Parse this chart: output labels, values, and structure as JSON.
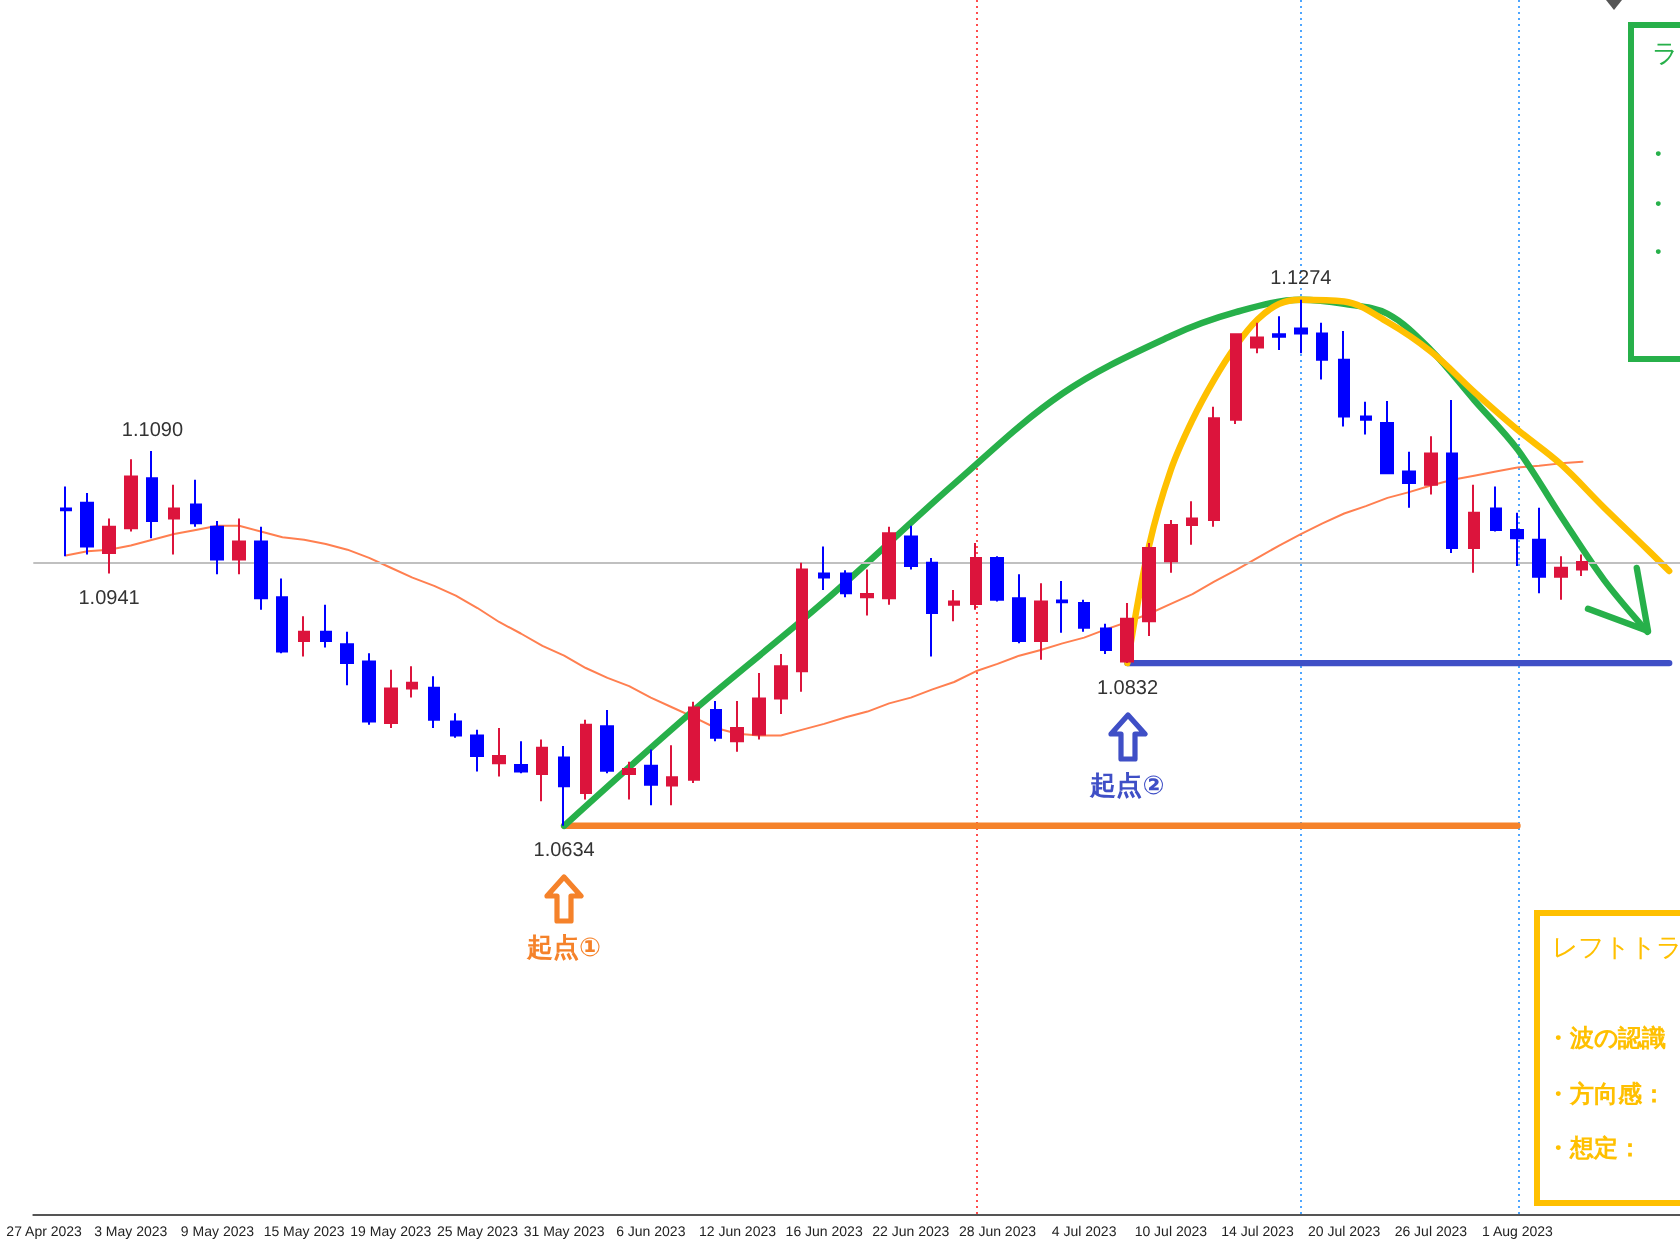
{
  "chart_data": {
    "type": "candlestick",
    "tick_labels": "x",
    "categories": [
      "27 Apr 2023",
      null,
      null,
      null,
      "3 May 2023",
      null,
      null,
      null,
      "9 May 2023",
      null,
      null,
      null,
      "15 May 2023",
      null,
      null,
      null,
      "19 May 2023",
      null,
      null,
      null,
      "25 May 2023",
      null,
      null,
      null,
      "31 May 2023",
      null,
      null,
      null,
      "6 Jun 2023",
      null,
      null,
      null,
      "12 Jun 2023",
      null,
      null,
      null,
      "16 Jun 2023",
      null,
      null,
      null,
      "22 Jun 2023",
      null,
      null,
      null,
      "28 Jun 2023",
      null,
      null,
      null,
      "4 Jul 2023",
      null,
      null,
      null,
      "10 Jul 2023",
      null,
      null,
      null,
      "14 Jul 2023",
      null,
      null,
      null,
      "20 Jul 2023",
      null,
      null,
      null,
      "26 Jul 2023",
      null,
      null,
      null,
      "1 Aug 2023",
      null,
      null,
      null,
      null,
      null,
      null,
      null
    ],
    "ohlc": [
      null,
      [
        1.102,
        1.1047,
        1.0962,
        1.1018
      ],
      [
        1.1027,
        1.1039,
        1.0964,
        1.0974
      ],
      [
        1.0966,
        1.1008,
        1.0941,
        1.0998
      ],
      [
        1.0996,
        1.108,
        1.0992,
        1.1059
      ],
      [
        1.1057,
        1.109,
        1.0984,
        1.1005
      ],
      [
        1.1008,
        1.1049,
        1.0964,
        1.102
      ],
      [
        1.1025,
        1.1055,
        1.0998,
        1.1002
      ],
      [
        1.0998,
        1.1005,
        1.094,
        1.0958
      ],
      [
        1.0958,
        1.1008,
        1.094,
        1.098
      ],
      [
        1.098,
        1.0998,
        1.0897,
        1.0911
      ],
      [
        1.0912,
        1.0935,
        1.0844,
        1.0846
      ],
      [
        1.0859,
        1.0889,
        1.084,
        1.087
      ],
      [
        1.087,
        1.0903,
        1.0851,
        1.0859
      ],
      [
        1.0855,
        1.087,
        1.0805,
        1.0832
      ],
      [
        1.0834,
        1.0844,
        1.0757,
        1.0761
      ],
      [
        1.0759,
        1.0824,
        1.0753,
        1.0801
      ],
      [
        1.0801,
        1.0828,
        1.079,
        1.0808
      ],
      [
        1.0802,
        1.0816,
        1.0753,
        1.0763
      ],
      [
        1.0761,
        1.0771,
        1.0741,
        1.0744
      ],
      [
        1.0744,
        1.0751,
        1.07,
        1.0719
      ],
      [
        1.071,
        1.0753,
        1.0694,
        1.0719
      ],
      [
        1.0708,
        1.0737,
        1.0698,
        1.07
      ],
      [
        1.0697,
        1.0739,
        1.0664,
        1.0729
      ],
      [
        1.0717,
        1.0731,
        1.0634,
        1.0682
      ],
      [
        1.0674,
        1.0763,
        1.0666,
        1.0757
      ],
      [
        1.0755,
        1.0775,
        1.0698,
        1.0701
      ],
      [
        1.0697,
        1.0712,
        1.0666,
        1.0703
      ],
      [
        1.0707,
        1.0727,
        1.0659,
        1.0684
      ],
      [
        1.0683,
        1.0732,
        1.0659,
        1.0693
      ],
      [
        1.069,
        1.0785,
        1.0686,
        1.0778
      ],
      [
        1.0775,
        1.0786,
        1.0737,
        1.0741
      ],
      [
        1.0737,
        1.0786,
        1.0724,
        1.0753
      ],
      [
        1.0745,
        1.082,
        1.0739,
        1.0789
      ],
      [
        1.0789,
        1.0843,
        1.077,
        1.0828
      ],
      [
        1.0822,
        1.0954,
        1.0797,
        1.0946
      ],
      [
        1.0941,
        1.0974,
        1.0921,
        1.0936
      ],
      [
        1.0941,
        1.0945,
        1.0912,
        1.0917
      ],
      [
        1.0912,
        1.0946,
        1.089,
        1.0916
      ],
      [
        1.0911,
        1.0998,
        1.0903,
        1.099
      ],
      [
        1.0986,
        1.0999,
        1.0946,
        1.095
      ],
      [
        1.0954,
        1.096,
        1.084,
        1.0893
      ],
      [
        1.0903,
        1.0921,
        1.0883,
        1.0907
      ],
      [
        1.0904,
        1.0978,
        1.0897,
        1.096
      ],
      [
        1.096,
        1.0962,
        1.0907,
        1.0909
      ],
      [
        1.0911,
        1.094,
        1.0856,
        1.0859
      ],
      [
        1.0859,
        1.0929,
        1.0836,
        1.0907
      ],
      [
        1.0908,
        1.0932,
        1.0869,
        1.0906
      ],
      [
        1.0905,
        1.0909,
        1.087,
        1.0875
      ],
      [
        1.0874,
        1.088,
        1.0843,
        1.0848
      ],
      [
        1.0834,
        1.0905,
        1.0832,
        1.0886
      ],
      [
        1.0883,
        1.0978,
        1.0865,
        1.0972
      ],
      [
        1.0956,
        1.1006,
        1.0942,
        1.1
      ],
      [
        1.1,
        1.1029,
        1.0976,
        1.1008
      ],
      [
        1.1006,
        1.1144,
        1.0998,
        1.113
      ],
      [
        1.1128,
        1.1233,
        1.1123,
        1.1232
      ],
      [
        1.1216,
        1.1246,
        1.1209,
        1.1228
      ],
      [
        1.1232,
        1.1254,
        1.1213,
        1.1229
      ],
      [
        1.1239,
        1.1274,
        1.1209,
        1.1233
      ],
      [
        1.1233,
        1.1246,
        1.1177,
        1.1201
      ],
      [
        1.1201,
        1.1236,
        1.112,
        1.1132
      ],
      [
        1.1132,
        1.115,
        1.111,
        1.1128
      ],
      [
        1.1124,
        1.1151,
        1.1062,
        1.1063
      ],
      [
        1.1065,
        1.1089,
        1.1021,
        1.1051
      ],
      [
        1.1049,
        1.1108,
        1.1037,
        1.1087
      ],
      [
        1.1087,
        1.1152,
        1.0966,
        1.0972
      ],
      [
        1.0972,
        1.1049,
        1.0942,
        1.1015
      ],
      [
        1.102,
        1.1047,
        1.0992,
        1.0994
      ],
      [
        1.0994,
        1.1015,
        1.095,
        1.0984
      ],
      [
        1.0982,
        1.1021,
        1.0917,
        1.0937
      ],
      [
        1.0937,
        1.0962,
        1.0909,
        1.0948
      ],
      [
        1.0946,
        1.0964,
        1.0938,
        1.0955
      ],
      null,
      null,
      null,
      null
    ],
    "series": [
      {
        "type": "line",
        "color": "#ff7f50",
        "values": [
          null,
          1.0963,
          1.0968,
          1.097,
          1.0975,
          1.0982,
          1.0989,
          1.0994,
          1.0999,
          1.0999,
          1.0992,
          1.0985,
          1.0982,
          1.0977,
          1.097,
          1.096,
          1.0948,
          1.0936,
          1.0926,
          1.0914,
          1.0899,
          1.0882,
          1.0868,
          1.0853,
          1.0841,
          1.0826,
          1.0814,
          1.0804,
          1.079,
          1.0778,
          1.0766,
          1.0753,
          1.0746,
          1.0744,
          1.0744,
          1.0751,
          1.0758,
          1.0766,
          1.0773,
          1.0783,
          1.079,
          1.08,
          1.0809,
          1.0822,
          1.0831,
          1.0841,
          1.0848,
          1.0856,
          1.0863,
          1.0873,
          1.0882,
          1.0892,
          1.0904,
          1.0916,
          1.0931,
          1.0945,
          1.096,
          1.0975,
          1.0989,
          1.1002,
          1.1014,
          1.1023,
          1.1033,
          1.104,
          1.1048,
          1.1055,
          1.106,
          1.1065,
          1.107,
          1.1072,
          1.1075,
          1.1077,
          null,
          null,
          null,
          null
        ]
      },
      {
        "type": "line",
        "color": "#f5822a",
        "values": [
          null,
          null,
          null,
          null,
          null,
          null,
          null,
          null,
          null,
          null,
          null,
          null,
          null,
          null,
          null,
          null,
          null,
          null,
          null,
          null,
          null,
          null,
          null,
          null,
          1.0634,
          null,
          null,
          null,
          null,
          null,
          null,
          null,
          null,
          null,
          null,
          null,
          null,
          null,
          null,
          null,
          null,
          null,
          null,
          null,
          null,
          null,
          null,
          null,
          null,
          null,
          null,
          null,
          null,
          null,
          null,
          null,
          null,
          null,
          null,
          null,
          null,
          null,
          null,
          null,
          null,
          null,
          null,
          null,
          1.0634,
          null,
          null,
          null,
          null,
          null,
          null,
          null
        ]
      },
      {
        "type": "line",
        "color": "#3f4fc6",
        "values": [
          null,
          null,
          null,
          null,
          null,
          null,
          null,
          null,
          null,
          null,
          null,
          null,
          null,
          null,
          null,
          null,
          null,
          null,
          null,
          null,
          null,
          null,
          null,
          null,
          null,
          null,
          null,
          null,
          null,
          null,
          null,
          null,
          null,
          null,
          null,
          null,
          null,
          null,
          null,
          null,
          null,
          null,
          null,
          null,
          null,
          null,
          null,
          null,
          null,
          null,
          1.0832,
          null,
          null,
          null,
          null,
          null,
          null,
          null,
          null,
          null,
          null,
          null,
          null,
          null,
          null,
          null,
          null,
          null,
          null,
          null,
          null,
          null,
          null,
          null,
          null,
          1.0832
        ]
      },
      {
        "type": "line",
        "color": "#27b04a",
        "values": [
          null,
          null,
          null,
          null,
          null,
          null,
          null,
          null,
          null,
          null,
          null,
          null,
          null,
          null,
          null,
          null,
          null,
          null,
          null,
          null,
          null,
          null,
          null,
          null,
          1.0634,
          null,
          null,
          null,
          null,
          null,
          1.0775,
          null,
          null,
          null,
          null,
          null,
          1.0907,
          null,
          null,
          null,
          null,
          null,
          1.105,
          null,
          null,
          null,
          null,
          1.116,
          null,
          null,
          null,
          null,
          1.123,
          null,
          null,
          1.1259,
          null,
          null,
          1.1274,
          null,
          1.1269,
          null,
          1.1257,
          null,
          1.1213,
          null,
          1.1152,
          null,
          1.1092,
          null,
          1.1011,
          null,
          1.0933,
          null,
          1.087,
          null
        ]
      },
      {
        "type": "line",
        "color": "#ffc000",
        "values": [
          null,
          null,
          null,
          null,
          null,
          null,
          null,
          null,
          null,
          null,
          null,
          null,
          null,
          null,
          null,
          null,
          null,
          null,
          null,
          null,
          null,
          null,
          null,
          null,
          null,
          null,
          null,
          null,
          null,
          null,
          null,
          null,
          null,
          null,
          null,
          null,
          null,
          null,
          null,
          null,
          null,
          null,
          null,
          null,
          null,
          null,
          null,
          null,
          null,
          null,
          1.0832,
          1.0975,
          1.1067,
          1.1128,
          1.1177,
          1.1218,
          1.125,
          1.1269,
          1.1274,
          null,
          1.1272,
          null,
          1.1247,
          null,
          1.1211,
          null,
          1.1162,
          null,
          1.1116,
          null,
          1.1074,
          null,
          1.1021,
          null,
          1.097,
          1.0944
        ]
      }
    ],
    "ref_lines": [
      {
        "axis": "y",
        "value": 1.0955,
        "color": "#c0c0c0",
        "line_style": "solid"
      },
      {
        "axis": "x",
        "value": "1 Aug 2023",
        "color": "#4da6ff",
        "line_style": "dotted"
      }
    ],
    "annotations": [
      {
        "text": "1.1090",
        "y": 1.109
      },
      {
        "text": "1.0941",
        "y": 1.0941
      },
      {
        "text": "1.0634",
        "x": "31 May 2023",
        "y": 1.0634
      },
      {
        "text": "1.0832",
        "y": 1.0832
      },
      {
        "text": "1.1274",
        "y": 1.1274
      },
      "起点①",
      "起点②",
      "ラ",
      "・",
      "・",
      "・",
      "レフトトラ",
      "・波の認識",
      "・方向感：",
      "・想定："
    ]
  }
}
